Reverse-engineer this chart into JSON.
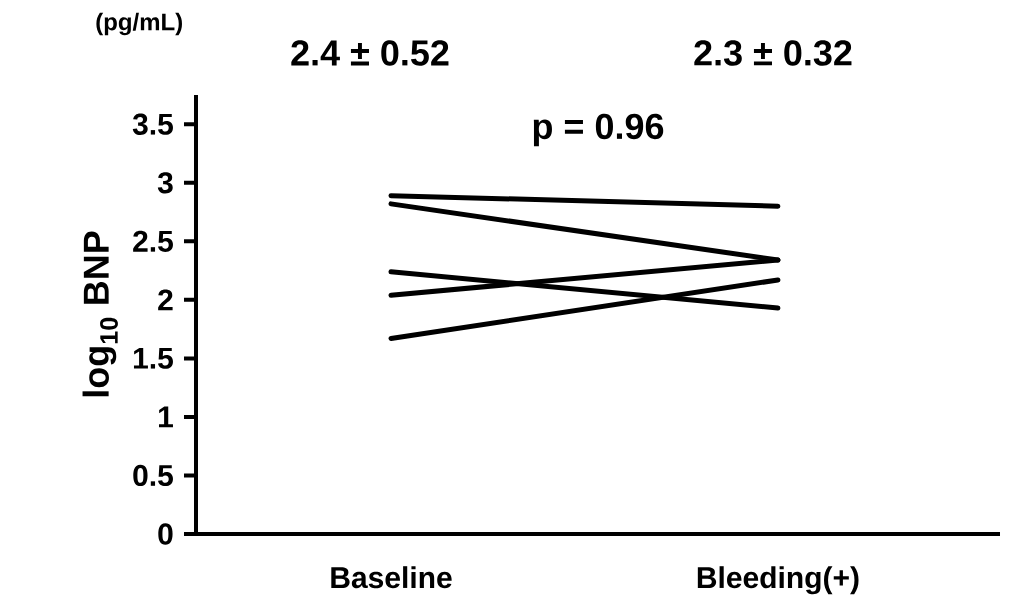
{
  "chart_data": {
    "type": "line",
    "ylabel": "log$_{10}$ BNP",
    "categories": [
      "Baseline",
      "Bleeding(+)"
    ],
    "series": [
      {
        "color": "#000000",
        "values": [
          2.89,
          2.8
        ]
      },
      {
        "color": "#000000",
        "values": [
          2.82,
          2.34
        ]
      },
      {
        "color": "#000000",
        "values": [
          2.24,
          1.93
        ]
      },
      {
        "color": "#000000",
        "values": [
          2.04,
          2.34
        ]
      },
      {
        "color": "#000000",
        "values": [
          1.67,
          2.17
        ]
      }
    ],
    "ylim": [
      0,
      3.75
    ],
    "yticks": [
      0,
      0.5,
      1,
      1.5,
      2,
      2.5,
      3,
      3.5
    ],
    "marker": "none",
    "line_style": "solid",
    "grid": false,
    "annotations": [
      "(pg/mL)",
      "2.4 ± 0.52",
      "2.3 ± 0.32",
      "p = 0.96"
    ]
  }
}
